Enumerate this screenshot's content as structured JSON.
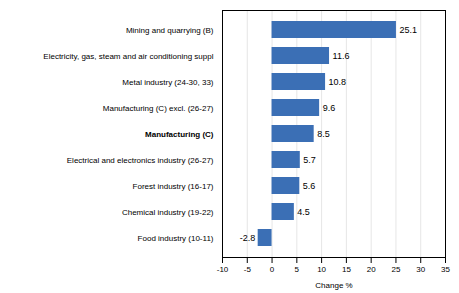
{
  "chart_data": {
    "type": "bar",
    "orientation": "horizontal",
    "categories": [
      "Food industry (10-11)",
      "Chemical industry (19-22)",
      "Forest industry (16-17)",
      "Electrical and electronics industry (26-27)",
      "Manufacturing (C)",
      "Manufacturing (C) excl. (26-27)",
      "Metal industry (24-30, 33)",
      "Electricity, gas, steam and air conditioning suppl",
      "Mining and quarrying (B)"
    ],
    "values": [
      -2.8,
      4.5,
      5.6,
      5.7,
      8.5,
      9.6,
      10.8,
      11.6,
      25.1
    ],
    "color": "#3B6FB5",
    "xlabel": "Change %",
    "xlim": [
      -10,
      35
    ],
    "xticks": [
      -10,
      -5,
      0,
      5,
      10,
      15,
      20,
      25,
      30,
      35
    ],
    "grid": true,
    "data_labels": true
  }
}
